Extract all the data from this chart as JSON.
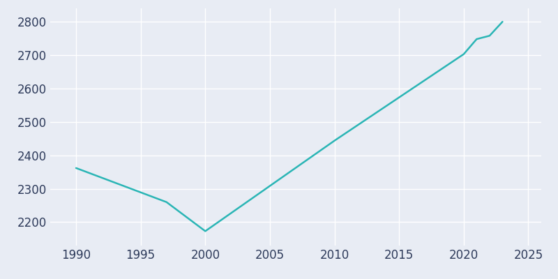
{
  "years": [
    1990,
    1997,
    2000,
    2010,
    2020,
    2021,
    2022,
    2023
  ],
  "population": [
    2362,
    2260,
    2173,
    2444,
    2703,
    2748,
    2758,
    2800
  ],
  "line_color": "#2ab5b5",
  "bg_color": "#e8ecf4",
  "plot_bg_color": "#e8ecf4",
  "grid_color": "#ffffff",
  "tick_color": "#2d3a5a",
  "xlim": [
    1988,
    2026
  ],
  "ylim": [
    2130,
    2840
  ],
  "xticks": [
    1990,
    1995,
    2000,
    2005,
    2010,
    2015,
    2020,
    2025
  ],
  "yticks": [
    2200,
    2300,
    2400,
    2500,
    2600,
    2700,
    2800
  ],
  "linewidth": 1.8,
  "tick_fontsize": 12,
  "figwidth": 8.0,
  "figheight": 4.0,
  "dpi": 100
}
